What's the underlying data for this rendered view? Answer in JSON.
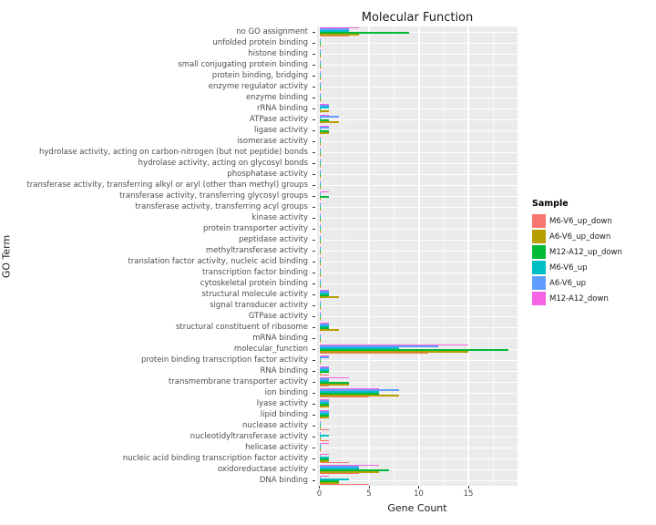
{
  "chart_data": {
    "type": "bar",
    "orientation": "horizontal",
    "title": "Molecular Function",
    "xlabel": "Gene Count",
    "ylabel": "GO Term",
    "legend_title": "Sample",
    "legend_position": "right",
    "grid": true,
    "panel_bg": "#EBEBEB",
    "grid_color": "#FFFFFF",
    "x_ticks": [
      0,
      5,
      10,
      15
    ],
    "x_minor_ticks": [
      2.5,
      7.5,
      12.5,
      17.5
    ],
    "x_range": [
      0,
      20
    ],
    "categories": [
      "no GO assignment",
      "unfolded protein binding",
      "histone binding",
      "small conjugating protein binding",
      "protein binding, bridging",
      "enzyme regulator activity",
      "enzyme binding",
      "rRNA binding",
      "ATPase activity",
      "ligase activity",
      "isomerase activity",
      "hydrolase activity, acting on carbon-nitrogen (but not peptide) bonds",
      "hydrolase activity, acting on glycosyl bonds",
      "phosphatase activity",
      "transferase activity, transferring alkyl or aryl (other than methyl) groups",
      "transferase activity, transferring glycosyl groups",
      "transferase activity, transferring acyl groups",
      "kinase activity",
      "protein transporter activity",
      "peptidase activity",
      "methyltransferase activity",
      "translation factor activity, nucleic acid binding",
      "transcription factor binding",
      "cytoskeletal protein binding",
      "structural molecule activity",
      "signal transducer activity",
      "GTPase activity",
      "structural constituent of ribosome",
      "mRNA binding",
      "molecular_function",
      "protein binding transcription factor activity",
      "RNA binding",
      "transmembrane transporter activity",
      "ion binding",
      "lyase activity",
      "lipid binding",
      "nuclease activity",
      "nucleotidyltransferase activity",
      "helicase activity",
      "nucleic acid binding transcription factor activity",
      "oxidoreductase activity",
      "DNA binding"
    ],
    "series": [
      {
        "name": "M6-V6_up_down",
        "color": "#F8766D",
        "values": [
          3,
          0,
          0,
          0,
          0,
          0,
          0,
          0,
          0,
          0,
          0,
          0,
          0,
          0,
          0,
          0,
          0,
          0,
          0,
          0,
          0,
          0,
          0,
          0,
          0,
          0,
          0,
          0,
          0,
          11,
          0,
          1,
          1,
          5,
          0,
          0,
          1,
          1,
          0,
          3,
          4,
          5
        ]
      },
      {
        "name": "A6-V6_up_down",
        "color": "#B79F00",
        "values": [
          4,
          0,
          0,
          0,
          0,
          0,
          0,
          1,
          2,
          1,
          0,
          0,
          0,
          0,
          0,
          0,
          0,
          0,
          0,
          0,
          0,
          0,
          0,
          0,
          2,
          0,
          0,
          2,
          0,
          15,
          0,
          0,
          3,
          8,
          1,
          1,
          0,
          0,
          0,
          1,
          6,
          2
        ]
      },
      {
        "name": "M12-A12_up_down",
        "color": "#00BA38",
        "values": [
          9,
          0,
          0,
          0,
          0,
          0,
          0,
          0,
          1,
          1,
          0,
          0,
          0,
          0,
          0,
          1,
          0,
          0,
          0,
          0,
          0,
          0,
          0,
          0,
          1,
          0,
          0,
          1,
          0,
          19,
          0,
          1,
          3,
          6,
          1,
          1,
          0,
          0,
          0,
          1,
          7,
          2
        ]
      },
      {
        "name": "M6-V6_up",
        "color": "#00BFC4",
        "values": [
          3,
          0,
          0,
          0,
          0,
          0,
          0,
          1,
          0,
          0,
          0,
          0,
          0,
          0,
          0,
          0,
          0,
          0,
          0,
          0,
          0,
          0,
          0,
          0,
          1,
          0,
          0,
          1,
          0,
          8,
          0,
          1,
          1,
          6,
          1,
          1,
          0,
          1,
          0,
          1,
          4,
          3
        ]
      },
      {
        "name": "A6-V6_up",
        "color": "#619CFF",
        "values": [
          3,
          0,
          0,
          0,
          0,
          0,
          0,
          1,
          2,
          1,
          0,
          0,
          0,
          0,
          0,
          0,
          0,
          0,
          0,
          0,
          0,
          0,
          0,
          0,
          1,
          0,
          0,
          1,
          0,
          12,
          1,
          1,
          1,
          8,
          1,
          1,
          0,
          0,
          0,
          0,
          4,
          0
        ]
      },
      {
        "name": "M12-A12_down",
        "color": "#F564E2",
        "values": [
          4,
          0,
          0,
          0,
          0,
          0,
          0,
          1,
          1,
          1,
          0,
          0,
          0,
          0,
          0,
          1,
          0,
          0,
          0,
          0,
          0,
          0,
          0,
          0,
          1,
          0,
          0,
          1,
          0,
          15,
          1,
          1,
          3,
          6,
          1,
          1,
          0,
          0,
          1,
          1,
          6,
          1
        ]
      }
    ]
  }
}
